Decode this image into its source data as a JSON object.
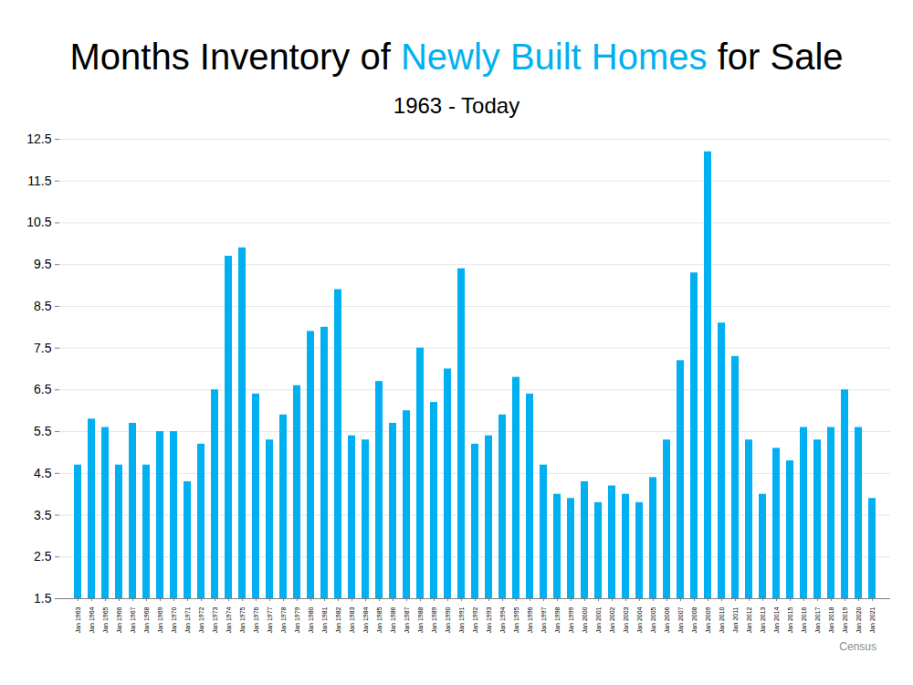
{
  "chart_data": {
    "type": "bar",
    "title": "Months Inventory of Newly Built Homes for Sale",
    "title_highlight": "Newly Built Homes",
    "subtitle": "1963 - Today",
    "source": "Census",
    "categories": [
      "Jan 1963",
      "Jan 1964",
      "Jan 1965",
      "Jan 1966",
      "Jan 1967",
      "Jan 1968",
      "Jan 1969",
      "Jan 1970",
      "Jan 1971",
      "Jan 1972",
      "Jan 1973",
      "Jan 1974",
      "Jan 1975",
      "Jan 1976",
      "Jan 1977",
      "Jan 1978",
      "Jan 1979",
      "Jan 1980",
      "Jan 1981",
      "Jan 1982",
      "Jan 1983",
      "Jan 1984",
      "Jan 1985",
      "Jan 1986",
      "Jan 1987",
      "Jan 1988",
      "Jan 1989",
      "Jan 1990",
      "Jan 1991",
      "Jan 1992",
      "Jan 1993",
      "Jan 1994",
      "Jan 1995",
      "Jan 1996",
      "Jan 1997",
      "Jan 1998",
      "Jan 1999",
      "Jan 2000",
      "Jan 2001",
      "Jan 2002",
      "Jan 2003",
      "Jan 2004",
      "Jan 2005",
      "Jan 2006",
      "Jan 2007",
      "Jan 2008",
      "Jan 2009",
      "Jan 2010",
      "Jan 2011",
      "Jan 2012",
      "Jan 2013",
      "Jan 2014",
      "Jan 2015",
      "Jan 2016",
      "Jan 2017",
      "Jan 2018",
      "Jan 2019",
      "Jan 2020",
      "Jan 2021"
    ],
    "values": [
      4.7,
      5.8,
      5.6,
      4.7,
      5.7,
      4.7,
      5.5,
      5.5,
      4.3,
      5.2,
      6.5,
      9.7,
      9.9,
      6.4,
      5.3,
      5.9,
      6.6,
      7.9,
      8.0,
      8.9,
      5.4,
      5.3,
      6.7,
      5.7,
      6.0,
      7.5,
      6.2,
      7.0,
      9.4,
      5.2,
      5.4,
      5.9,
      6.8,
      6.4,
      4.7,
      4.0,
      3.9,
      4.3,
      3.8,
      4.2,
      4.0,
      3.8,
      4.4,
      5.3,
      7.2,
      9.3,
      12.2,
      8.1,
      7.3,
      5.3,
      4.0,
      5.1,
      4.8,
      5.6,
      5.3,
      5.6,
      6.5,
      5.6,
      3.9
    ],
    "color": "#00b0f0",
    "ylim": [
      1.5,
      12.5
    ],
    "yticks": [
      1.5,
      2.5,
      3.5,
      4.5,
      5.5,
      6.5,
      7.5,
      8.5,
      9.5,
      10.5,
      11.5,
      12.5
    ],
    "grid": true
  }
}
